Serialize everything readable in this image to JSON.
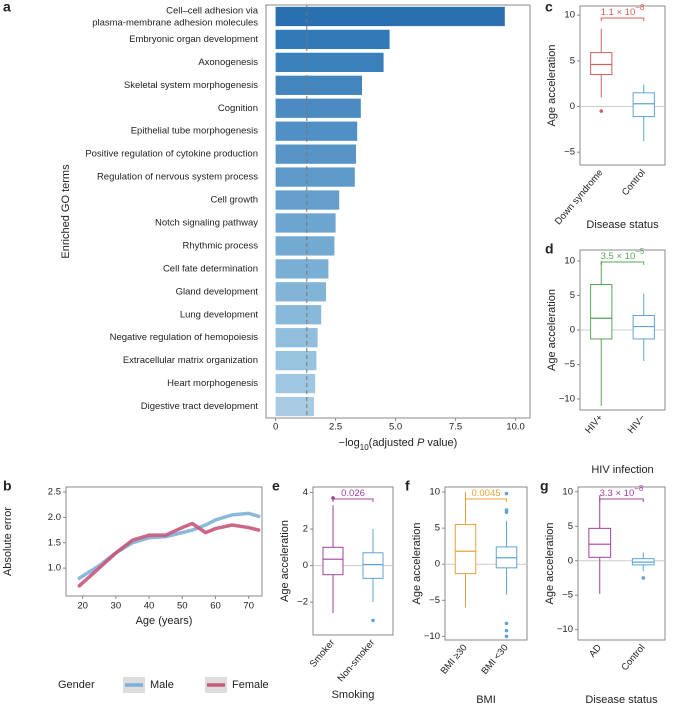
{
  "chart_data": [
    {
      "type": "bar",
      "panel": "a",
      "ylabel": "Enriched GO terms",
      "xlabel": [
        "−log",
        "10",
        "(adjusted ",
        "P",
        " value)"
      ],
      "categories": [
        "Cell–cell adhesion via\nplasma-membrane adhesion molecules",
        "Embryonic organ development",
        "Axonogenesis",
        "Skeletal system morphogenesis",
        "Cognition",
        "Epithelial tube morphogenesis",
        "Positive regulation of cytokine production",
        "Regulation of nervous system process",
        "Cell growth",
        "Notch signaling pathway",
        "Rhythmic process",
        "Cell fate determination",
        "Gland development",
        "Lung development",
        "Negative regulation of hemopoiesis",
        "Extracellular matrix organization",
        "Heart morphogenesis",
        "Digestive tract development"
      ],
      "values": [
        9.55,
        4.75,
        4.5,
        3.6,
        3.55,
        3.4,
        3.35,
        3.3,
        2.65,
        2.5,
        2.45,
        2.2,
        2.1,
        1.9,
        1.75,
        1.7,
        1.65,
        1.6
      ],
      "colors": [
        "#2a6fb0",
        "#3179b7",
        "#3a80ba",
        "#4386be",
        "#4b8bc1",
        "#5190c4",
        "#5895c6",
        "#5e9ac9",
        "#65a0cc",
        "#6ca5cf",
        "#73aad2",
        "#7aafd5",
        "#82b4d7",
        "#89b9da",
        "#91bedc",
        "#98c3df",
        "#a0c7e1",
        "#a8cbe3"
      ],
      "xlim": [
        -0.4,
        10.6
      ],
      "xticks": [
        0,
        2.5,
        {
          "value": 5,
          "label": "5.0"
        },
        7.5,
        {
          "value": 10,
          "label": "10.0"
        }
      ],
      "reference_line": 1.3
    },
    {
      "type": "line",
      "panel": "b",
      "xlabel": "Age (years)",
      "ylabel": "Absolute error",
      "x": [
        19,
        25,
        30,
        35,
        40,
        45,
        50,
        53,
        57,
        60,
        65,
        70,
        73
      ],
      "series": [
        {
          "name": "Male",
          "color": "#7fb0d8",
          "values": [
            0.8,
            1.05,
            1.3,
            1.5,
            1.6,
            1.62,
            1.7,
            1.75,
            1.85,
            1.95,
            2.05,
            2.08,
            2.02
          ]
        },
        {
          "name": "Female",
          "color": "#c8577a",
          "values": [
            0.65,
            1.0,
            1.3,
            1.55,
            1.65,
            1.65,
            1.8,
            1.88,
            1.7,
            1.78,
            1.85,
            1.8,
            1.75
          ]
        }
      ],
      "legend_title": "Gender",
      "xlim": [
        15,
        74
      ],
      "xticks": [
        20,
        30,
        40,
        50,
        60,
        70
      ],
      "ylim": [
        0.45,
        2.6
      ],
      "yticks": [
        {
          "value": 1,
          "label": "1.0"
        },
        1.5,
        {
          "value": 2,
          "label": "2.0"
        },
        2.5
      ]
    },
    {
      "type": "box",
      "panel": "c",
      "xlabel": "Disease status",
      "ylabel": "Age acceleration",
      "categories": [
        "Down syndrome",
        "Control"
      ],
      "boxes": [
        {
          "color": "#d0605e",
          "whisker_low": 1.0,
          "q1": 3.5,
          "median": 4.6,
          "q3": 5.9,
          "whisker_high": 8.5,
          "outliers": [
            -0.5
          ]
        },
        {
          "color": "#5fa3d6",
          "whisker_low": -3.8,
          "q1": -1.1,
          "median": 0.3,
          "q3": 1.5,
          "whisker_high": 2.4,
          "outliers": []
        }
      ],
      "annotation": {
        "text": "1.1 × 10",
        "exponent": "−8",
        "color": "#d0605e"
      },
      "ylim": [
        -6.4,
        11
      ],
      "yticks": [
        {
          "value": -5,
          "label": "−5"
        },
        0,
        5,
        10
      ]
    },
    {
      "type": "box",
      "panel": "d",
      "xlabel": "HIV infection",
      "ylabel": "Age acceleration",
      "categories": [
        "HIV+",
        "HIV−"
      ],
      "boxes": [
        {
          "color": "#5aa55a",
          "whisker_low": -11,
          "q1": -1.3,
          "median": 1.7,
          "q3": 6.6,
          "whisker_high": 10,
          "outliers": []
        },
        {
          "color": "#5fa3d6",
          "whisker_low": -4.5,
          "q1": -1.3,
          "median": 0.5,
          "q3": 2.1,
          "whisker_high": 5.3,
          "outliers": []
        }
      ],
      "annotation": {
        "text": "3.5 × 10",
        "exponent": "−5",
        "color": "#5aa55a"
      },
      "ylim": [
        -11.6,
        11.6
      ],
      "yticks": [
        {
          "value": -10,
          "label": "−10"
        },
        {
          "value": -5,
          "label": "−5"
        },
        0,
        5,
        10
      ]
    },
    {
      "type": "box",
      "panel": "e",
      "xlabel": "Smoking",
      "ylabel": "Age acceleration",
      "categories": [
        "Smoker",
        "Non-smoker"
      ],
      "boxes": [
        {
          "color": "#a0409e",
          "whisker_low": -2.6,
          "q1": -0.5,
          "median": 0.35,
          "q3": 1.0,
          "whisker_high": 3.3,
          "outliers": [
            3.7
          ]
        },
        {
          "color": "#5fa3d6",
          "whisker_low": -2.0,
          "q1": -0.7,
          "median": 0.05,
          "q3": 0.7,
          "whisker_high": 2.0,
          "outliers": [
            -3.0
          ]
        }
      ],
      "annotation": {
        "text": "0.026",
        "color": "#a0409e"
      },
      "ylim": [
        -3.8,
        4.3
      ],
      "yticks": [
        {
          "value": -2,
          "label": "−2"
        },
        0,
        2,
        4
      ]
    },
    {
      "type": "box",
      "panel": "f",
      "xlabel": "BMI",
      "ylabel": "Age acceleration",
      "categories": [
        "BMI ≥30",
        "BMI <30"
      ],
      "boxes": [
        {
          "color": "#e8a23a",
          "whisker_low": -6,
          "q1": -1.3,
          "median": 1.8,
          "q3": 5.5,
          "whisker_high": 10,
          "outliers": []
        },
        {
          "color": "#5fa3d6",
          "whisker_low": -4.2,
          "q1": -0.5,
          "median": 0.9,
          "q3": 2.4,
          "whisker_high": 6.0,
          "outliers": [
            9.8,
            7.5,
            7.2,
            -8.2,
            -9.2,
            -10
          ]
        }
      ],
      "annotation": {
        "text": "0.0045",
        "color": "#e8a23a"
      },
      "ylim": [
        -10.5,
        10.7
      ],
      "yticks": [
        {
          "value": -10,
          "label": "−10"
        },
        {
          "value": -5,
          "label": "−5"
        },
        0,
        5,
        10
      ]
    },
    {
      "type": "box",
      "panel": "g",
      "xlabel": "Disease status",
      "ylabel": "Age acceleration",
      "categories": [
        "AD",
        "Control"
      ],
      "boxes": [
        {
          "color": "#a0409e",
          "whisker_low": -4.8,
          "q1": 0.5,
          "median": 2.4,
          "q3": 4.7,
          "whisker_high": 9.5,
          "outliers": []
        },
        {
          "color": "#5fa3d6",
          "whisker_low": -1.5,
          "q1": -0.6,
          "median": -0.2,
          "q3": 0.3,
          "whisker_high": 1.2,
          "outliers": [
            -2.5
          ]
        }
      ],
      "annotation": {
        "text": "3.3 × 10",
        "exponent": "−8",
        "color": "#a0409e"
      },
      "ylim": [
        -11.5,
        10.7
      ],
      "yticks": [
        {
          "value": -10,
          "label": "−10"
        },
        {
          "value": -5,
          "label": "−5"
        },
        0,
        5,
        10
      ]
    }
  ]
}
